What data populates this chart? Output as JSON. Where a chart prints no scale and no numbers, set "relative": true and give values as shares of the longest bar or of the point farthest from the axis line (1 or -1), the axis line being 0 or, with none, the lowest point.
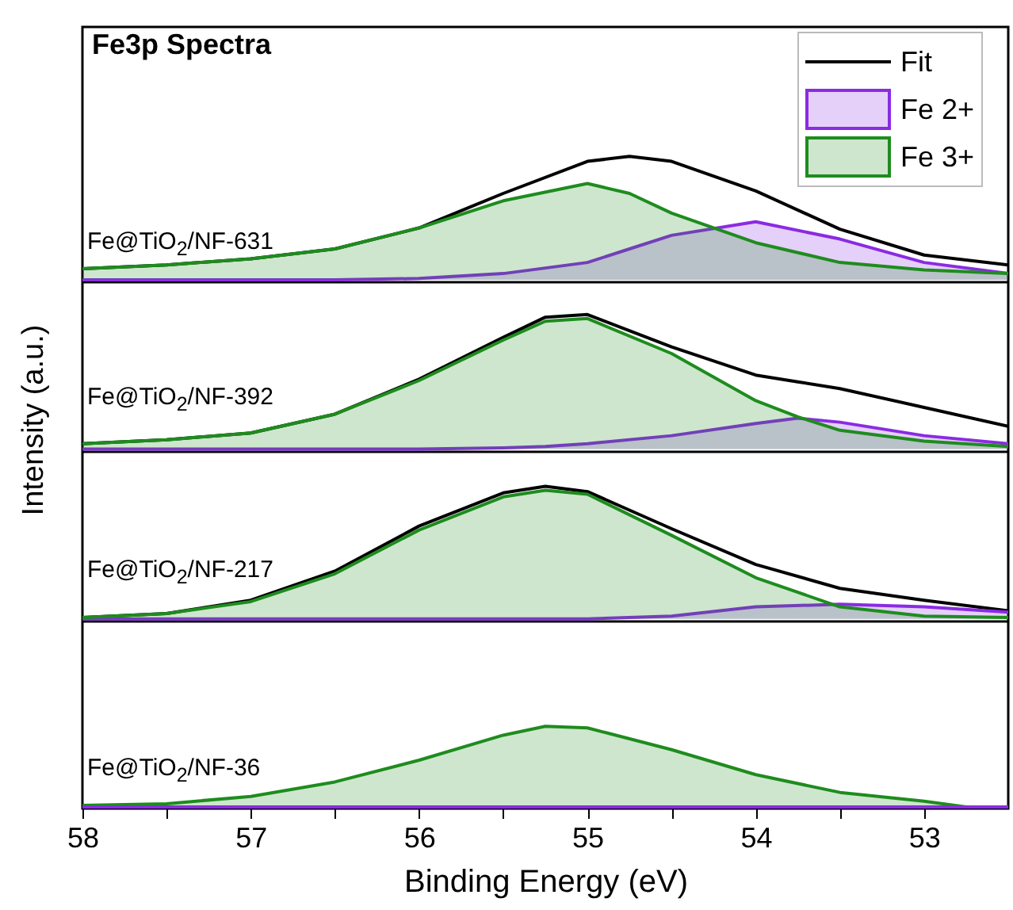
{
  "chart_data": [
    {
      "type": "line",
      "title": "Fe3p Spectra",
      "ylabel": "Intensity (a.u.)",
      "relative": true,
      "legend": "top right",
      "tick_labels": false,
      "xlim": [
        58,
        52.5
      ],
      "annotations": [
        "Fe@TiO$_{2}$/NF-631"
      ],
      "x": [
        58,
        57.5,
        57,
        56.5,
        56,
        55.5,
        55,
        54.75,
        54.5,
        54,
        53.5,
        53,
        52.5
      ],
      "series": [
        {
          "name": "Fit",
          "type": "line",
          "color": "#000000",
          "values": [
            0.09,
            0.12,
            0.17,
            0.25,
            0.42,
            0.7,
            0.96,
            1,
            0.96,
            0.72,
            0.41,
            0.2,
            0.12
          ]
        },
        {
          "name": "Fe 2+",
          "type": "area",
          "color": "#8a2be2",
          "values": [
            0,
            0,
            0,
            0,
            0.01,
            0.05,
            0.14,
            0.25,
            0.36,
            0.47,
            0.33,
            0.14,
            0.05
          ]
        },
        {
          "name": "Fe 3+",
          "type": "area",
          "color": "#1e8c1e",
          "values": [
            0.09,
            0.12,
            0.17,
            0.25,
            0.42,
            0.64,
            0.78,
            0.7,
            0.54,
            0.3,
            0.14,
            0.08,
            0.05
          ]
        }
      ]
    },
    {
      "type": "line",
      "relative": true,
      "tick_labels": false,
      "xlim": [
        58,
        52.5
      ],
      "annotations": [
        "Fe@TiO$_{2}$/NF-392"
      ],
      "x": [
        58,
        57.5,
        57,
        56.5,
        56,
        55.5,
        55.25,
        55,
        54.5,
        54,
        53.75,
        53.5,
        53,
        52.5
      ],
      "series": [
        {
          "type": "line",
          "color": "#000000",
          "values": [
            0.04,
            0.07,
            0.12,
            0.26,
            0.52,
            0.83,
            0.98,
            1,
            0.76,
            0.55,
            0.5,
            0.45,
            0.31,
            0.17
          ]
        },
        {
          "type": "area",
          "color": "#8a2be2",
          "values": [
            0,
            0,
            0,
            0,
            0,
            0.01,
            0.02,
            0.04,
            0.1,
            0.19,
            0.23,
            0.2,
            0.1,
            0.04
          ]
        },
        {
          "type": "area",
          "color": "#1e8c1e",
          "values": [
            0.04,
            0.07,
            0.12,
            0.26,
            0.51,
            0.81,
            0.95,
            0.97,
            0.71,
            0.36,
            0.24,
            0.14,
            0.06,
            0.02
          ]
        }
      ]
    },
    {
      "type": "line",
      "relative": true,
      "tick_labels": false,
      "xlim": [
        58,
        52.5
      ],
      "annotations": [
        "Fe@TiO$_{2}$/NF-217"
      ],
      "x": [
        58,
        57.5,
        57,
        56.5,
        56,
        55.5,
        55.25,
        55,
        54.5,
        54,
        53.5,
        53,
        52.5
      ],
      "series": [
        {
          "type": "line",
          "color": "#000000",
          "values": [
            0.01,
            0.04,
            0.14,
            0.36,
            0.7,
            0.95,
            1,
            0.96,
            0.68,
            0.41,
            0.23,
            0.14,
            0.06
          ]
        },
        {
          "type": "area",
          "color": "#8a2be2",
          "values": [
            0,
            0,
            0,
            0,
            0,
            0,
            0,
            0,
            0.02,
            0.09,
            0.11,
            0.09,
            0.05
          ]
        },
        {
          "type": "area",
          "color": "#1e8c1e",
          "values": [
            0.01,
            0.04,
            0.13,
            0.34,
            0.67,
            0.92,
            0.97,
            0.94,
            0.63,
            0.31,
            0.09,
            0.02,
            0.01
          ]
        }
      ]
    },
    {
      "type": "line",
      "relative": true,
      "xlabel": "Binding Energy (eV)",
      "xlim": [
        58,
        52.5
      ],
      "xticks": [
        58,
        {
          "value": 57.5,
          "label": null
        },
        57,
        {
          "value": 56.5,
          "label": null
        },
        56,
        {
          "value": 55.5,
          "label": null
        },
        55,
        {
          "value": 54.5,
          "label": null
        },
        54,
        {
          "value": 53.5,
          "label": null
        },
        53
      ],
      "annotations": [
        "Fe@TiO$_{2}$/NF-36"
      ],
      "x": [
        58,
        57.5,
        57,
        56.5,
        56,
        55.5,
        55.25,
        55,
        54.5,
        54,
        53.5,
        53,
        52.75,
        52.5
      ],
      "series": [
        {
          "type": "area",
          "color": "#1e8c1e",
          "values": [
            0.02,
            0.04,
            0.13,
            0.31,
            0.58,
            0.89,
            1,
            0.98,
            0.71,
            0.4,
            0.18,
            0.07,
            0,
            null
          ]
        },
        {
          "type": "line",
          "color": "#8a2be2",
          "values": [
            0,
            0,
            0,
            0,
            0,
            0,
            0,
            0,
            0,
            0,
            0,
            0,
            0,
            0
          ]
        }
      ]
    }
  ]
}
